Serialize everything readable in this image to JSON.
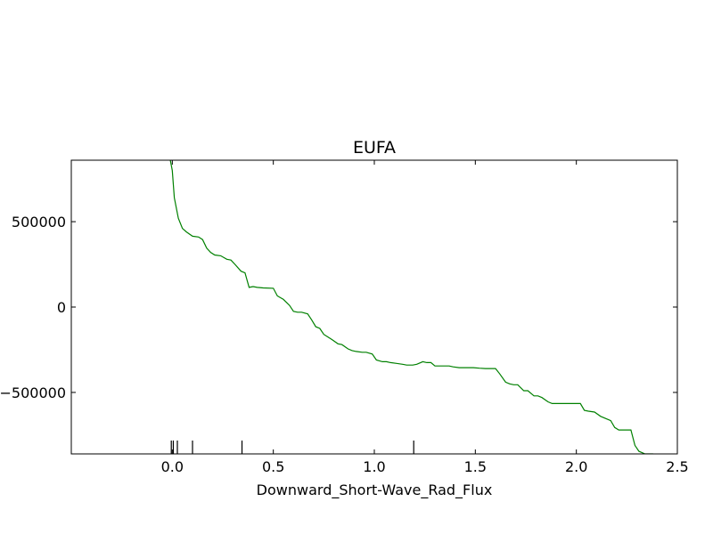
{
  "chart_data": {
    "type": "line",
    "title": "EUFA",
    "xlabel": "Downward_Short-Wave_Rad_Flux",
    "ylabel": "",
    "xlim": [
      -0.5,
      2.5
    ],
    "ylim": [
      -860000,
      860000
    ],
    "xticks": [
      0.0,
      0.5,
      1.0,
      1.5,
      2.0,
      2.5
    ],
    "xtick_labels": [
      "0.0",
      "0.5",
      "1.0",
      "1.5",
      "2.0",
      "2.5"
    ],
    "yticks": [
      500000,
      0,
      -500000
    ],
    "ytick_labels": [
      "500000",
      "0",
      "−500000"
    ],
    "grid": false,
    "series": [
      {
        "color": "#008000",
        "x": [
          -0.01,
          0.0,
          0.01,
          0.03,
          0.05,
          0.07,
          0.1,
          0.13,
          0.15,
          0.17,
          0.19,
          0.21,
          0.24,
          0.27,
          0.29,
          0.31,
          0.34,
          0.36,
          0.38,
          0.4,
          0.42,
          0.45,
          0.5,
          0.52,
          0.55,
          0.58,
          0.6,
          0.62,
          0.64,
          0.67,
          0.69,
          0.71,
          0.73,
          0.75,
          0.77,
          0.79,
          0.82,
          0.84,
          0.87,
          0.89,
          0.91,
          0.94,
          0.96,
          0.99,
          1.01,
          1.04,
          1.06,
          1.08,
          1.11,
          1.14,
          1.16,
          1.19,
          1.21,
          1.24,
          1.26,
          1.28,
          1.3,
          1.32,
          1.35,
          1.37,
          1.39,
          1.42,
          1.44,
          1.47,
          1.49,
          1.52,
          1.55,
          1.57,
          1.6,
          1.62,
          1.65,
          1.67,
          1.69,
          1.71,
          1.74,
          1.76,
          1.79,
          1.81,
          1.83,
          1.86,
          1.88,
          1.91,
          1.93,
          1.96,
          2.0,
          2.02,
          2.04,
          2.06,
          2.09,
          2.12,
          2.15,
          2.17,
          2.19,
          2.21,
          2.24,
          2.27,
          2.29,
          2.31,
          2.34,
          2.38
        ],
        "y": [
          860000,
          800000,
          640000,
          520000,
          460000,
          440000,
          415000,
          410000,
          395000,
          345000,
          320000,
          305000,
          300000,
          280000,
          275000,
          250000,
          210000,
          200000,
          115000,
          120000,
          115000,
          112000,
          110000,
          65000,
          45000,
          10000,
          -25000,
          -30000,
          -30000,
          -40000,
          -75000,
          -115000,
          -125000,
          -160000,
          -175000,
          -190000,
          -215000,
          -220000,
          -245000,
          -255000,
          -260000,
          -265000,
          -265000,
          -275000,
          -310000,
          -320000,
          -320000,
          -325000,
          -330000,
          -335000,
          -340000,
          -340000,
          -335000,
          -320000,
          -325000,
          -325000,
          -345000,
          -345000,
          -345000,
          -345000,
          -350000,
          -355000,
          -355000,
          -355000,
          -355000,
          -358000,
          -360000,
          -360000,
          -360000,
          -390000,
          -440000,
          -450000,
          -455000,
          -455000,
          -490000,
          -490000,
          -520000,
          -520000,
          -530000,
          -555000,
          -565000,
          -565000,
          -565000,
          -565000,
          -565000,
          -565000,
          -605000,
          -610000,
          -615000,
          -640000,
          -655000,
          -665000,
          -705000,
          -720000,
          -720000,
          -720000,
          -810000,
          -845000,
          -860000,
          -860000
        ]
      }
    ],
    "rug": [
      -0.005,
      0.005,
      0.025,
      0.1,
      0.345,
      1.195
    ]
  }
}
